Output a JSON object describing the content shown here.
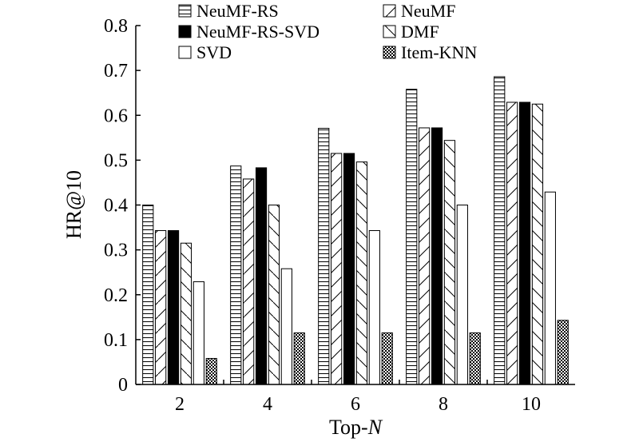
{
  "chart_data": {
    "type": "bar",
    "title": "",
    "xlabel_prefix": "Top-",
    "xlabel_italic": "N",
    "ylabel": "HR@10",
    "categories": [
      "2",
      "4",
      "6",
      "8",
      "10"
    ],
    "ylim": [
      0,
      0.8
    ],
    "yticks": [
      "0",
      "0.1",
      "0.2",
      "0.3",
      "0.4",
      "0.5",
      "0.6",
      "0.7",
      "0.8"
    ],
    "grid": false,
    "legend_position": "top",
    "series": [
      {
        "name": "NeuMF-RS",
        "pattern": "hlines",
        "values": [
          0.4,
          0.487,
          0.571,
          0.658,
          0.686
        ]
      },
      {
        "name": "NeuMF",
        "pattern": "diag-fwd",
        "values": [
          0.343,
          0.458,
          0.515,
          0.572,
          0.629
        ]
      },
      {
        "name": "NeuMF-RS-SVD",
        "pattern": "solid",
        "values": [
          0.343,
          0.483,
          0.515,
          0.572,
          0.629
        ]
      },
      {
        "name": "DMF",
        "pattern": "diag-back",
        "values": [
          0.315,
          0.4,
          0.496,
          0.544,
          0.625
        ]
      },
      {
        "name": "SVD",
        "pattern": "empty",
        "values": [
          0.229,
          0.258,
          0.343,
          0.4,
          0.429
        ]
      },
      {
        "name": "Item-KNN",
        "pattern": "dots",
        "values": [
          0.058,
          0.115,
          0.115,
          0.115,
          0.143
        ]
      }
    ]
  }
}
